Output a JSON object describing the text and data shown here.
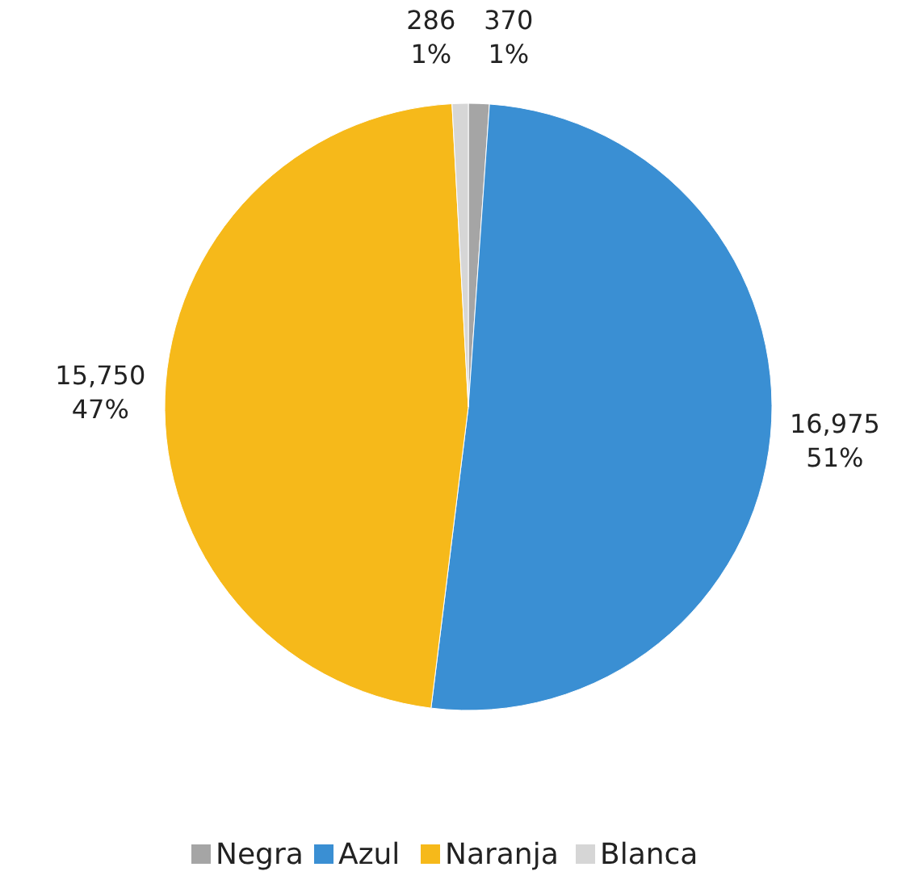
{
  "chart_data": {
    "type": "pie",
    "categories": [
      "Negra",
      "Azul",
      "Naranja",
      "Blanca"
    ],
    "values": [
      370,
      16975,
      15750,
      286
    ],
    "colors": [
      "#a5a5a5",
      "#3a8fd3",
      "#f6b91a",
      "#d6d6d6"
    ],
    "value_labels": [
      "370\n1%",
      "16,975\n51%",
      "15,750\n47%",
      "286\n1%"
    ],
    "legend": "bottom"
  }
}
